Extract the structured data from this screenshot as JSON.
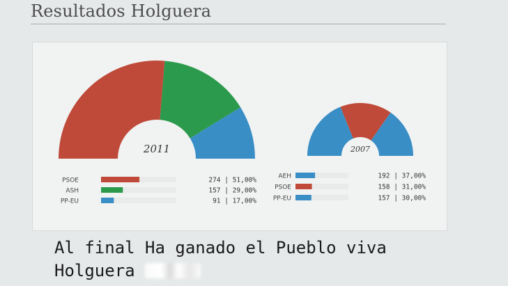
{
  "page": {
    "title": "Resultados Holguera",
    "caption_line1": "Al final Ha ganado el Pueblo viva",
    "caption_line2": "Holguera"
  },
  "colors": {
    "PSOE": "#bf4a39",
    "ASH": "#2c9a4c",
    "PP-EU": "#3a8ec6",
    "AEH": "#3a8ec6",
    "track": "#e9ebeb"
  },
  "chart_data": [
    {
      "type": "semicircle-donut",
      "title": "2011",
      "series": [
        {
          "name": "PSOE",
          "votes": 274,
          "percent": "51,00%",
          "value": 51
        },
        {
          "name": "ASH",
          "votes": 157,
          "percent": "29,00%",
          "value": 29
        },
        {
          "name": "PP-EU",
          "votes": 91,
          "percent": "17,00%",
          "value": 17
        }
      ]
    },
    {
      "type": "semicircle-donut",
      "title": "2007",
      "series": [
        {
          "name": "AEH",
          "votes": 192,
          "percent": "37,00%",
          "value": 37
        },
        {
          "name": "PSOE",
          "votes": 158,
          "percent": "31,00%",
          "value": 31
        },
        {
          "name": "PP-EU",
          "votes": 157,
          "percent": "30,00%",
          "value": 30
        }
      ]
    }
  ]
}
